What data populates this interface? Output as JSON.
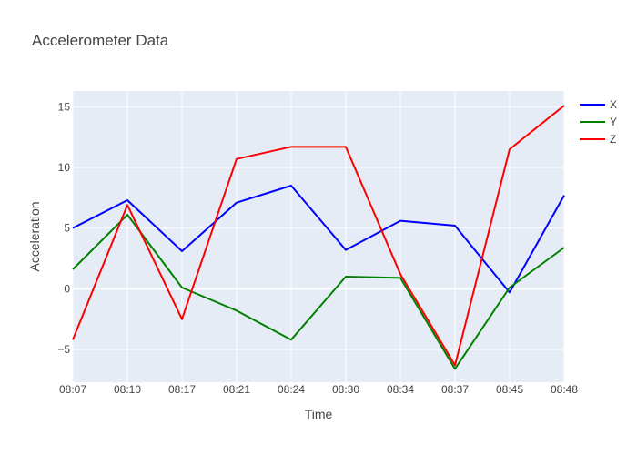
{
  "chart_data": {
    "type": "line",
    "title": "Accelerometer Data",
    "xlabel": "Time",
    "ylabel": "Acceleration",
    "categories": [
      "08:07",
      "08:10",
      "08:17",
      "08:21",
      "08:24",
      "08:30",
      "08:34",
      "08:37",
      "08:45",
      "08:48"
    ],
    "yticks": [
      -5,
      0,
      5,
      10,
      15
    ],
    "ylim": [
      -7.7,
      16.3
    ],
    "grid": true,
    "legend_position": "top-right",
    "plot_background": "#e5ecf6",
    "series": [
      {
        "name": "X",
        "color": "#0000ff",
        "values": [
          5.0,
          7.3,
          3.1,
          7.1,
          8.5,
          3.2,
          5.6,
          5.2,
          -0.3,
          7.7
        ]
      },
      {
        "name": "Y",
        "color": "#008000",
        "values": [
          1.6,
          6.1,
          0.1,
          -1.8,
          -4.2,
          1.0,
          0.9,
          -6.6,
          0.1,
          3.4
        ]
      },
      {
        "name": "Z",
        "color": "#ff0000",
        "values": [
          -4.2,
          6.9,
          -2.5,
          10.7,
          11.7,
          11.7,
          1.2,
          -6.3,
          11.5,
          15.1
        ]
      }
    ]
  }
}
